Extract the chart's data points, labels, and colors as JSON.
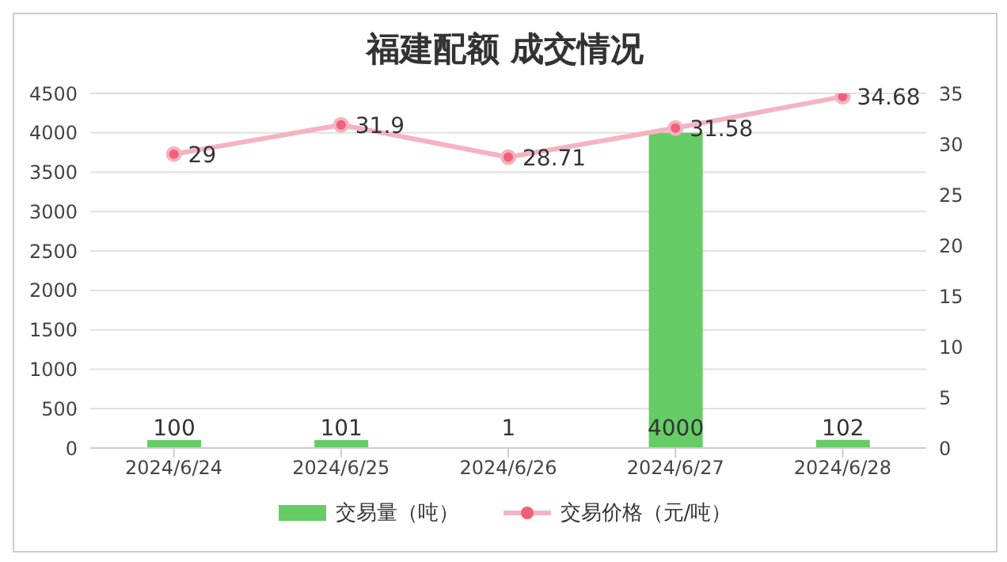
{
  "chart_data": {
    "type": "bar",
    "title": "福建配额 成交情况",
    "categories": [
      "2024/6/24",
      "2024/6/25",
      "2024/6/26",
      "2024/6/27",
      "2024/6/28"
    ],
    "series": [
      {
        "name": "交易量（吨）",
        "color": "#66cc66",
        "values": [
          100,
          101,
          1,
          4000,
          102
        ]
      },
      {
        "name": "交易价格（元/吨）",
        "type": "line",
        "axis": "y2",
        "color": "#f4b3c0",
        "values": [
          29,
          31.9,
          28.71,
          31.58,
          34.68
        ]
      }
    ],
    "ylim": [
      0,
      4500
    ],
    "yticks": [
      0,
      500,
      1000,
      1500,
      2000,
      2500,
      3000,
      3500,
      4000,
      4500
    ],
    "y2lim": [
      0,
      35
    ],
    "y2ticks": [
      0,
      5,
      10,
      15,
      20,
      25,
      30,
      35
    ],
    "grid": "y",
    "legend": "bottom",
    "marker": "circle",
    "data_labels": true
  }
}
